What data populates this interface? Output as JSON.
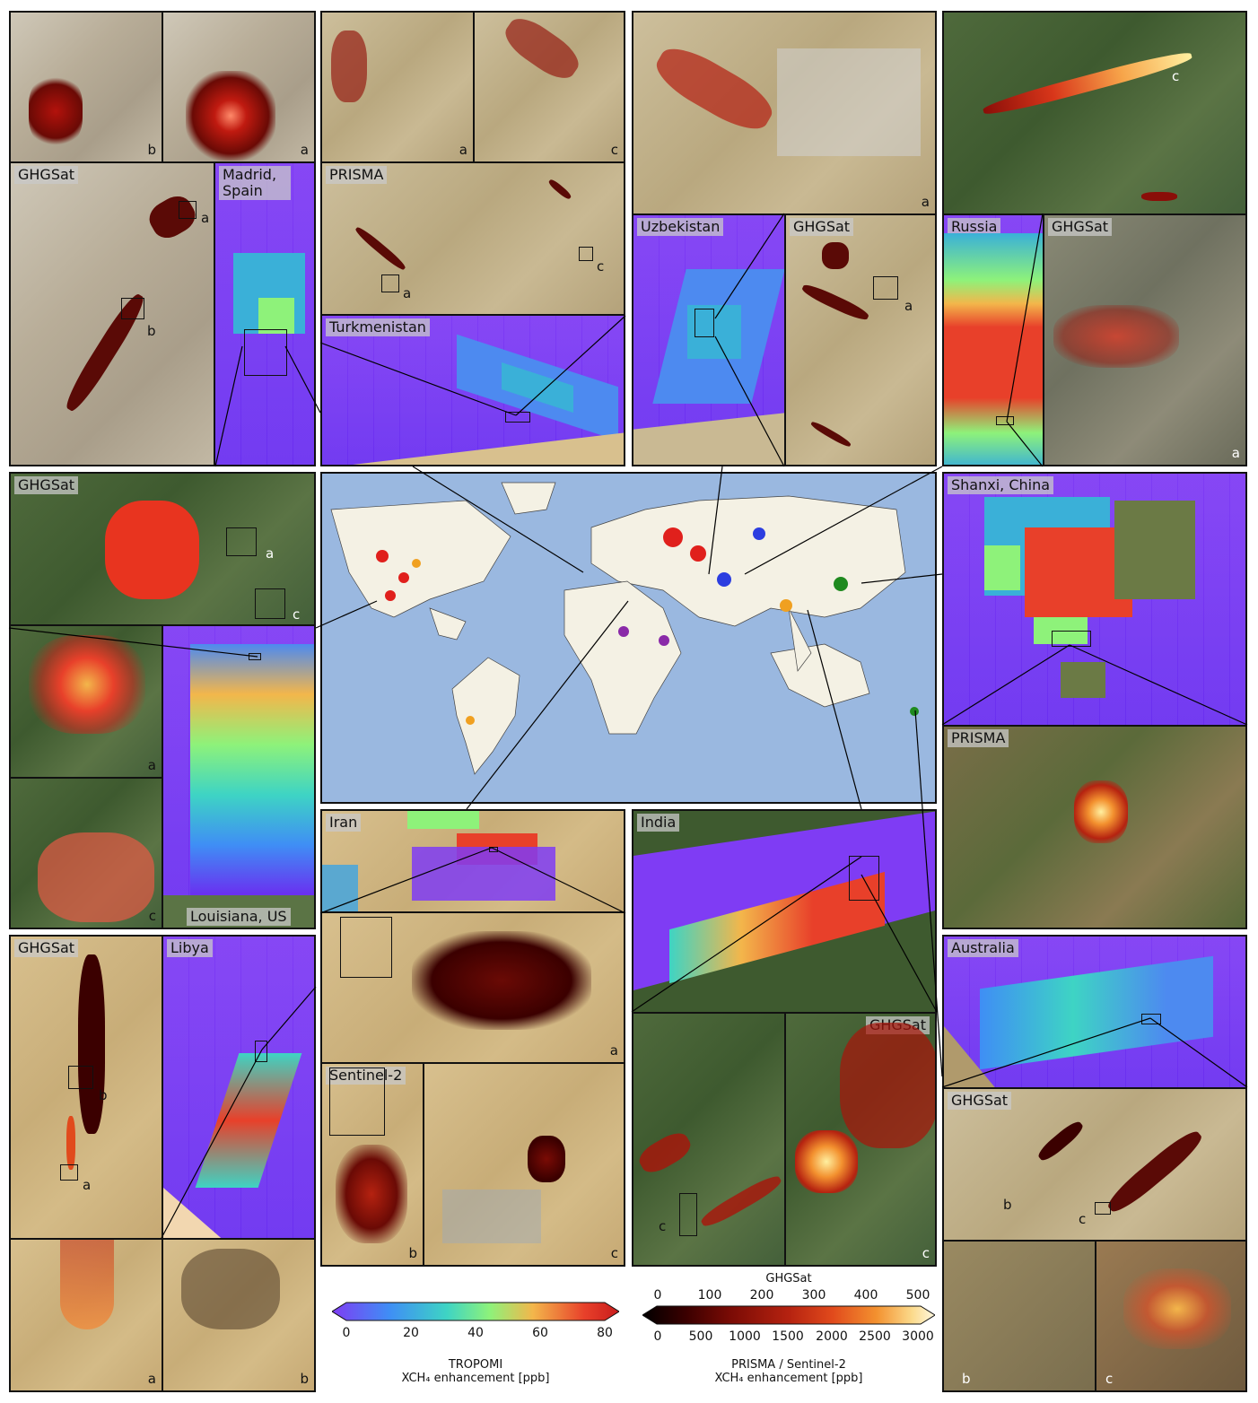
{
  "labels": {
    "madrid_ghgsat": "GHGSat",
    "madrid_tropomi": "Madrid, Spain",
    "turkmenistan_prisma": "PRISMA",
    "turkmenistan_tropomi": "Turkmenistan",
    "uzbekistan_tropomi": "Uzbekistan",
    "uzbekistan_ghgsat": "GHGSat",
    "russia_tropomi": "Russia",
    "russia_ghgsat": "GHGSat",
    "louisiana_ghgsat": "GHGSat",
    "louisiana_tropomi": "Louisiana, US",
    "shanxi_tropomi": "Shanxi, China",
    "shanxi_prisma": "PRISMA",
    "iran_tropomi": "Iran",
    "iran_sentinel": "Sentinel-2",
    "india_tropomi": "India",
    "india_ghgsat": "GHGSat",
    "libya_ghgsat": "GHGSat",
    "libya_tropomi": "Libya",
    "australia_tropomi": "Australia",
    "australia_ghgsat": "GHGSat"
  },
  "subpanel_tags": {
    "a": "a",
    "b": "b",
    "c": "c"
  },
  "colorbar_tropomi": {
    "ticks": [
      "0",
      "20",
      "40",
      "60",
      "80"
    ],
    "title_line1": "TROPOMI",
    "title_line2": "XCH₄ enhancement [ppb]",
    "colors": [
      "#7f3cf4",
      "#3f8ef5",
      "#3ed4c4",
      "#8ef27a",
      "#f3b64b",
      "#e8402a",
      "#c81c1c"
    ]
  },
  "colorbar_ghgsat": {
    "top_title": "GHGSat",
    "top_ticks": [
      "0",
      "100",
      "200",
      "300",
      "400",
      "500"
    ],
    "bottom_ticks": [
      "0",
      "500",
      "1000",
      "1500",
      "2000",
      "2500",
      "3000"
    ],
    "title_line1": "PRISMA / Sentinel-2",
    "title_line2": "XCH₄ enhancement [ppb]",
    "colors": [
      "#000000",
      "#3b0000",
      "#7a0b05",
      "#b52210",
      "#e14a1c",
      "#f3912f",
      "#fbd98a",
      "#fff8e0"
    ]
  },
  "colors": {
    "map_ocean": "#9ab8e0",
    "map_land": "#f4f1e4",
    "marker_red": "#e0201c",
    "marker_blue": "#2c3ee0",
    "marker_green": "#1f8a1f",
    "marker_orange": "#f0a020",
    "marker_purple": "#8a2aa8"
  }
}
